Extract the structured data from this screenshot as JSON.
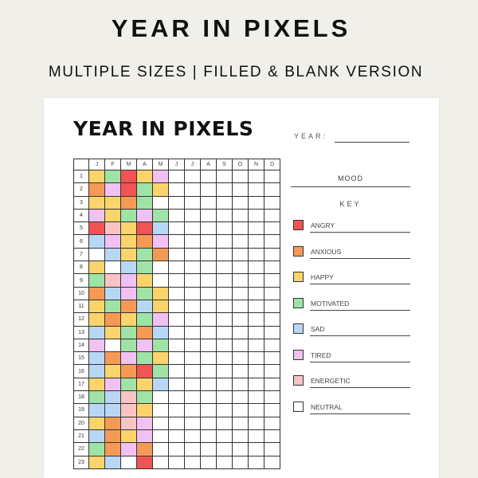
{
  "banner": {
    "title": "YEAR IN PIXELS",
    "subtitle": "MULTIPLE SIZES | FILLED & BLANK VERSION"
  },
  "sheet": {
    "title": "YEAR IN PIXELS",
    "year_label": "YEAR:",
    "mood_label": "MOOD",
    "key_label": "KEY"
  },
  "months": [
    "J",
    "F",
    "M",
    "A",
    "M",
    "J",
    "J",
    "A",
    "S",
    "O",
    "N",
    "D"
  ],
  "days": [
    1,
    2,
    3,
    4,
    5,
    6,
    7,
    8,
    9,
    10,
    11,
    12,
    13,
    14,
    15,
    16,
    17,
    18,
    19,
    20,
    21,
    22,
    23
  ],
  "moods": [
    {
      "key": "angry",
      "label": "ANGRY",
      "color": "#f05454"
    },
    {
      "key": "anxious",
      "label": "ANXIOUS",
      "color": "#f59a55"
    },
    {
      "key": "happy",
      "label": "HAPPY",
      "color": "#fbd56b"
    },
    {
      "key": "motivated",
      "label": "MOTIVATED",
      "color": "#9fe3a7"
    },
    {
      "key": "sad",
      "label": "SAD",
      "color": "#b8d7f5"
    },
    {
      "key": "tired",
      "label": "TIRED",
      "color": "#f1c1f3"
    },
    {
      "key": "energetic",
      "label": "ENERGETIC",
      "color": "#f9c4c4"
    },
    {
      "key": "neutral",
      "label": "NEUTRAL",
      "color": "#ffffff"
    }
  ],
  "grid_colors": [
    [
      "happy",
      "motivated",
      "angry",
      "happy",
      "tired"
    ],
    [
      "anxious",
      "tired",
      "angry",
      "motivated",
      "happy"
    ],
    [
      "happy",
      "happy",
      "anxious",
      "motivated",
      "neutral"
    ],
    [
      "tired",
      "happy",
      "motivated",
      "tired",
      "motivated"
    ],
    [
      "angry",
      "energetic",
      "happy",
      "angry",
      "sad"
    ],
    [
      "sad",
      "tired",
      "happy",
      "anxious",
      "tired"
    ],
    [
      "neutral",
      "sad",
      "happy",
      "motivated",
      "anxious"
    ],
    [
      "happy",
      "neutral",
      "sad",
      "motivated",
      "neutral"
    ],
    [
      "motivated",
      "energetic",
      "tired",
      "happy",
      "neutral"
    ],
    [
      "anxious",
      "sad",
      "tired",
      "motivated",
      "happy"
    ],
    [
      "happy",
      "motivated",
      "anxious",
      "sad",
      "happy"
    ],
    [
      "happy",
      "anxious",
      "happy",
      "motivated",
      "tired"
    ],
    [
      "sad",
      "happy",
      "motivated",
      "anxious",
      "sad"
    ],
    [
      "tired",
      "neutral",
      "motivated",
      "tired",
      "motivated"
    ],
    [
      "sad",
      "anxious",
      "tired",
      "motivated",
      "happy"
    ],
    [
      "sad",
      "happy",
      "anxious",
      "angry",
      "motivated"
    ],
    [
      "happy",
      "tired",
      "motivated",
      "happy",
      "sad"
    ],
    [
      "motivated",
      "sad",
      "energetic",
      "motivated",
      "neutral"
    ],
    [
      "sad",
      "sad",
      "energetic",
      "happy",
      "neutral"
    ],
    [
      "happy",
      "anxious",
      "energetic",
      "tired",
      "neutral"
    ],
    [
      "sad",
      "anxious",
      "happy",
      "tired",
      "neutral"
    ],
    [
      "motivated",
      "anxious",
      "tired",
      "anxious",
      "neutral"
    ],
    [
      "happy",
      "sad",
      "neutral",
      "angry",
      "neutral"
    ]
  ]
}
